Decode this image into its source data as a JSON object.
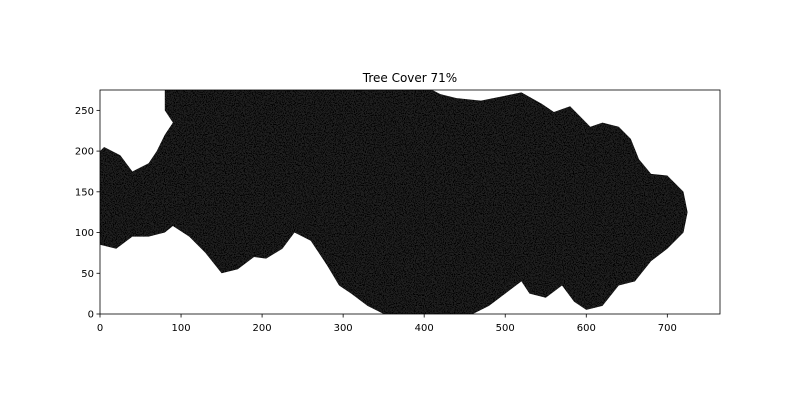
{
  "chart_data": {
    "type": "heatmap",
    "title": "Tree Cover 71%",
    "xlabel": "",
    "ylabel": "",
    "xlim": [
      0,
      765
    ],
    "ylim": [
      0,
      275
    ],
    "x_ticks": [
      0,
      100,
      200,
      300,
      400,
      500,
      600,
      700
    ],
    "y_ticks": [
      0,
      50,
      100,
      150,
      200,
      250
    ],
    "grid": false,
    "colors": {
      "tree": "#000000",
      "open": "#ffffff"
    },
    "tree_cover_percent": 71,
    "lower_boundary": [
      [
        0,
        85
      ],
      [
        20,
        80
      ],
      [
        40,
        95
      ],
      [
        60,
        95
      ],
      [
        80,
        100
      ],
      [
        90,
        108
      ],
      [
        110,
        95
      ],
      [
        130,
        75
      ],
      [
        150,
        50
      ],
      [
        170,
        55
      ],
      [
        190,
        70
      ],
      [
        205,
        68
      ],
      [
        225,
        80
      ],
      [
        240,
        100
      ],
      [
        260,
        90
      ],
      [
        280,
        60
      ],
      [
        295,
        35
      ],
      [
        310,
        25
      ],
      [
        330,
        10
      ],
      [
        350,
        0
      ],
      [
        460,
        0
      ],
      [
        480,
        10
      ],
      [
        500,
        25
      ],
      [
        520,
        40
      ],
      [
        530,
        25
      ],
      [
        550,
        20
      ],
      [
        570,
        35
      ],
      [
        585,
        15
      ],
      [
        600,
        5
      ],
      [
        620,
        10
      ],
      [
        640,
        35
      ],
      [
        660,
        40
      ],
      [
        680,
        65
      ],
      [
        700,
        80
      ],
      [
        720,
        100
      ]
    ],
    "upper_boundary": [
      [
        725,
        125
      ],
      [
        720,
        150
      ],
      [
        700,
        170
      ],
      [
        680,
        172
      ],
      [
        665,
        190
      ],
      [
        655,
        215
      ],
      [
        640,
        230
      ],
      [
        620,
        235
      ],
      [
        605,
        230
      ],
      [
        595,
        240
      ],
      [
        580,
        255
      ],
      [
        560,
        248
      ],
      [
        545,
        258
      ],
      [
        520,
        272
      ],
      [
        500,
        268
      ],
      [
        470,
        262
      ],
      [
        440,
        265
      ],
      [
        420,
        270
      ],
      [
        410,
        275
      ],
      [
        80,
        275
      ],
      [
        80,
        250
      ],
      [
        90,
        235
      ],
      [
        80,
        220
      ],
      [
        70,
        200
      ],
      [
        60,
        185
      ],
      [
        40,
        175
      ],
      [
        25,
        195
      ],
      [
        5,
        205
      ],
      [
        0,
        200
      ]
    ]
  }
}
